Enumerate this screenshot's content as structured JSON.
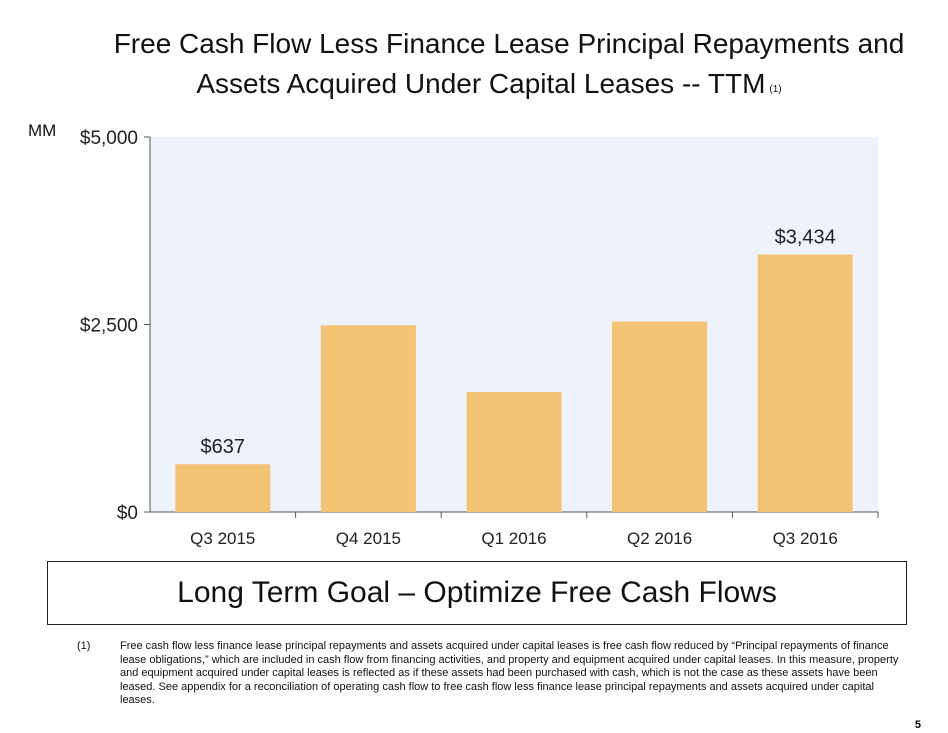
{
  "title_line1": "Free Cash Flow Less Finance Lease Principal Repayments and",
  "title_line2": "Assets Acquired Under Capital Leases -- TTM",
  "title_note": "(1)",
  "chart_data": {
    "type": "bar",
    "title": "Free Cash Flow Less Finance Lease Principal Repayments and Assets Acquired Under Capital Leases -- TTM",
    "ylabel": "MM",
    "categories": [
      "Q3 2015",
      "Q4 2015",
      "Q1 2016",
      "Q2 2016",
      "Q3 2016"
    ],
    "values": [
      637,
      2490,
      1600,
      2540,
      3434
    ],
    "data_labels": [
      "$637",
      null,
      null,
      null,
      "$3,434"
    ],
    "ylim": [
      0,
      5000
    ],
    "yticks": [
      0,
      2500,
      5000
    ],
    "ytick_labels": [
      "$0",
      "$2,500",
      "$5,000"
    ],
    "bar_color": "#f2c275",
    "plot_bg": "#eef3fb"
  },
  "goal_text": "Long Term Goal – Optimize Free Cash Flows",
  "footnote_marker": "(1)",
  "footnote_text": "Free cash flow less finance lease principal repayments and assets acquired under capital leases is free cash flow reduced by “Principal repayments of finance lease obligations,” which are included in cash flow from financing activities, and property and equipment acquired under capital leases. In this measure, property and equipment acquired under capital leases is reflected as if these assets had been purchased with cash, which is not the case as these assets have been leased. See appendix for a reconciliation of operating cash flow to free cash flow less finance lease principal repayments and assets acquired under capital leases.",
  "page_number": "5"
}
